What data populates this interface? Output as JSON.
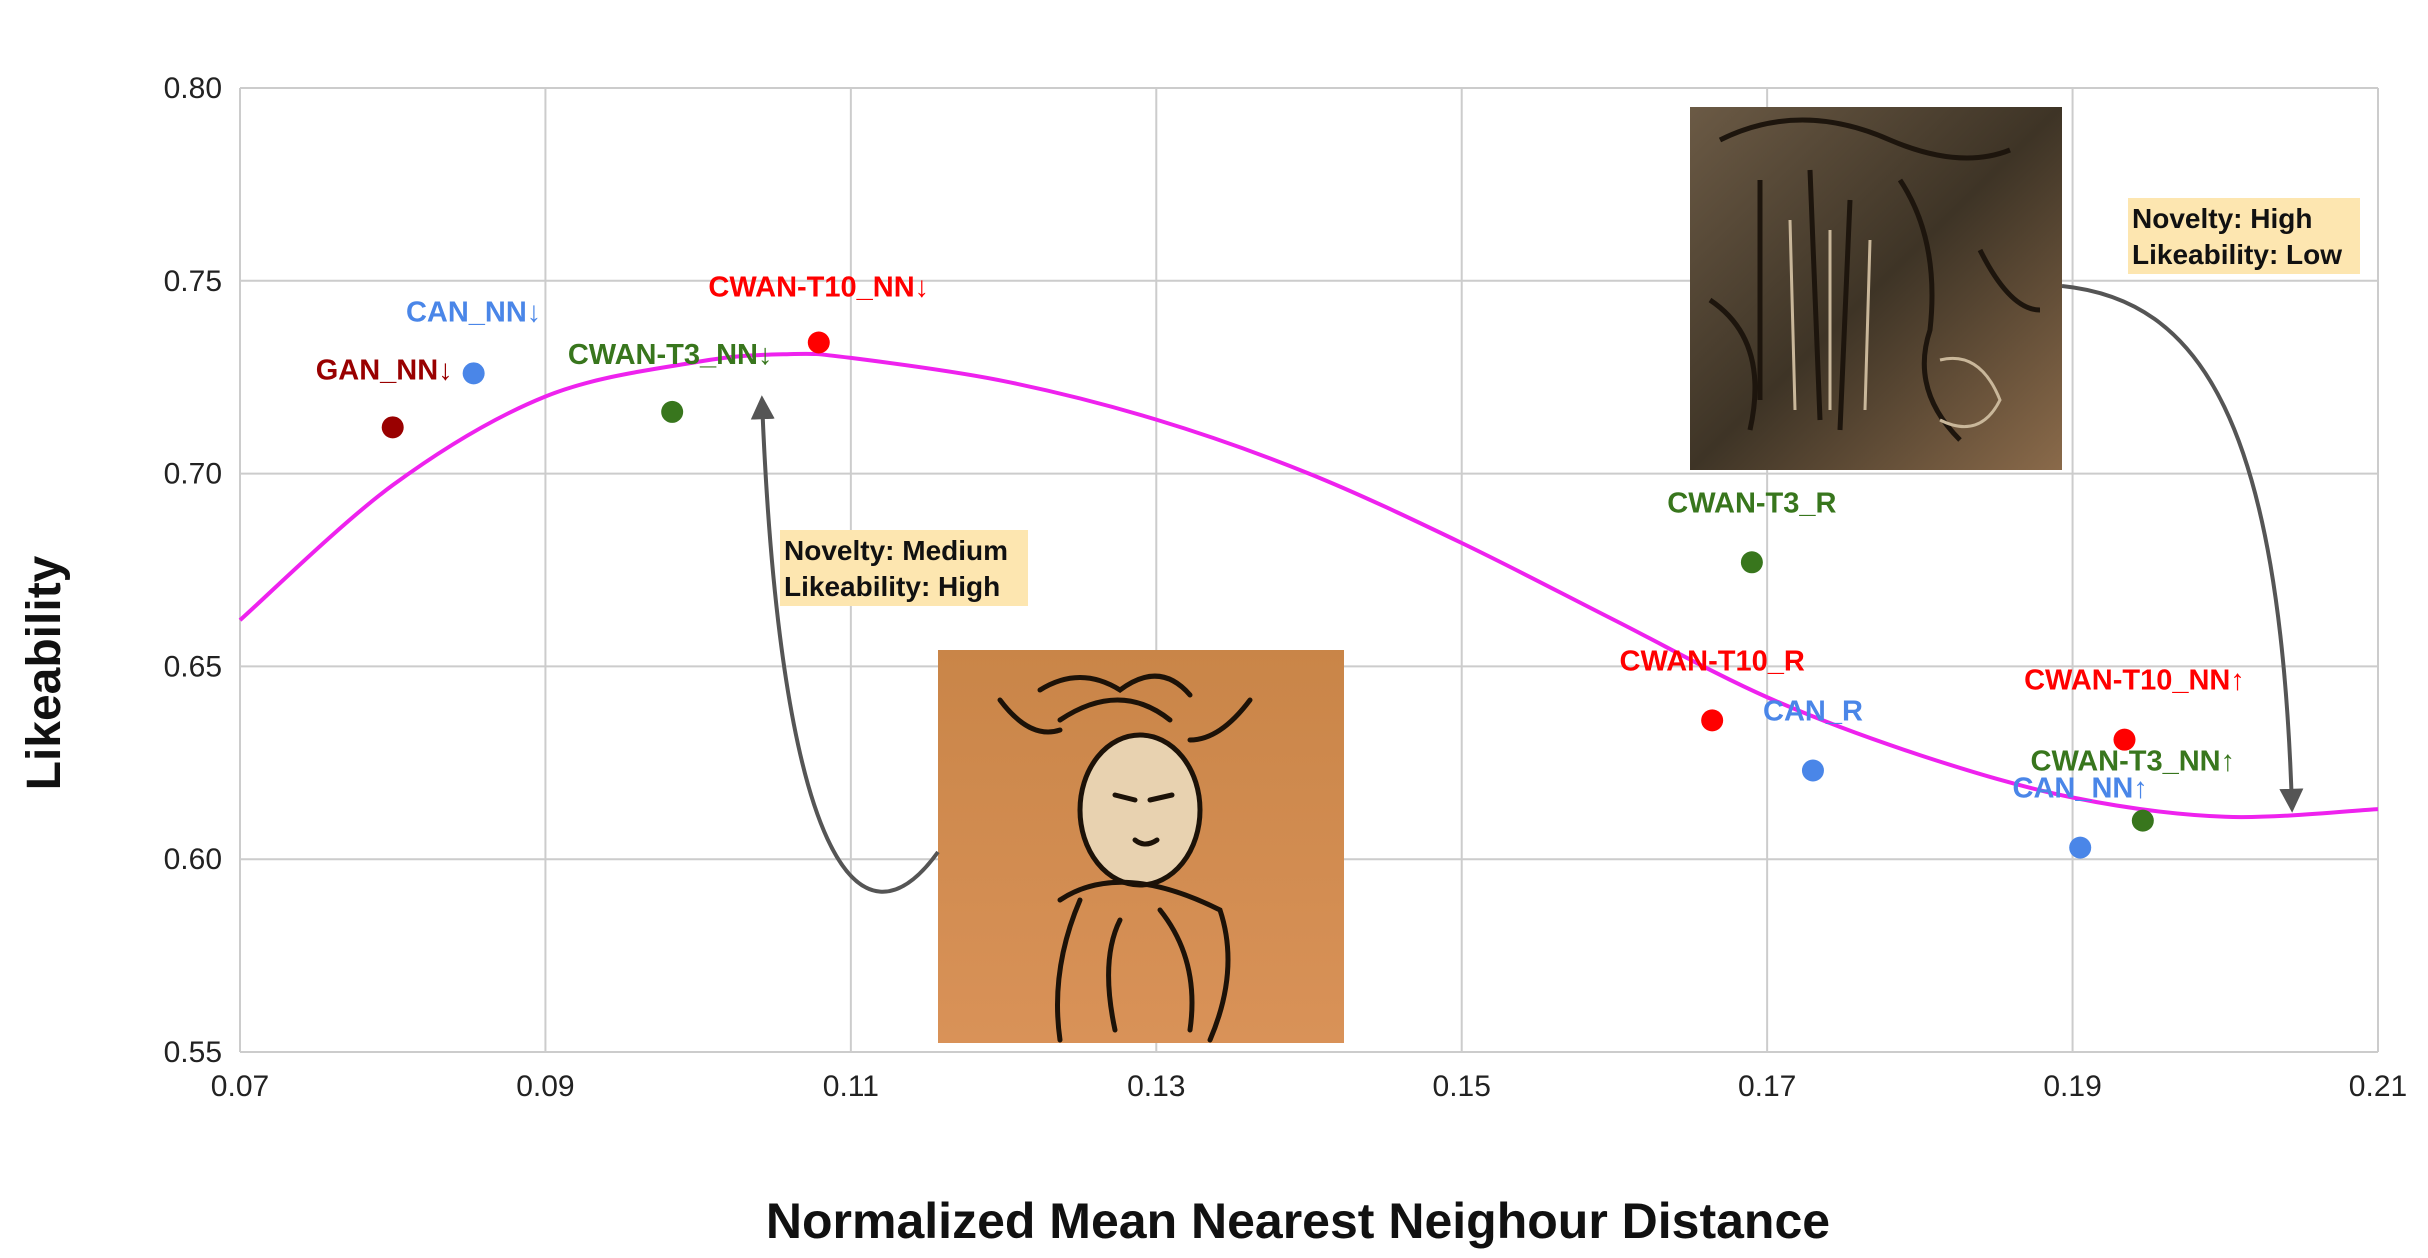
{
  "chart_data": {
    "type": "scatter",
    "xlabel": "Normalized Mean Nearest Neighour Distance",
    "ylabel": "Likeability",
    "xlim": [
      0.07,
      0.21
    ],
    "ylim": [
      0.55,
      0.8
    ],
    "x_ticks": [
      "0.07",
      "0.09",
      "0.11",
      "0.13",
      "0.15",
      "0.17",
      "0.19",
      "0.21"
    ],
    "y_ticks": [
      "0.55",
      "0.60",
      "0.65",
      "0.70",
      "0.75",
      "0.80"
    ],
    "grid": true,
    "points": [
      {
        "label": "GAN_NN↓",
        "x": 0.08,
        "y": 0.712,
        "color": "#990000"
      },
      {
        "label": "CAN_NN↓",
        "x": 0.0853,
        "y": 0.726,
        "color": "#4a86e8"
      },
      {
        "label": "CWAN-T3_NN↓",
        "x": 0.0983,
        "y": 0.716,
        "color": "#38761d"
      },
      {
        "label": "CWAN-T10_NN↓",
        "x": 0.1079,
        "y": 0.734,
        "color": "#ff0000"
      },
      {
        "label": "CWAN-T3_R",
        "x": 0.169,
        "y": 0.677,
        "color": "#38761d"
      },
      {
        "label": "CWAN-T10_R",
        "x": 0.1664,
        "y": 0.636,
        "color": "#ff0000"
      },
      {
        "label": "CAN_R",
        "x": 0.173,
        "y": 0.623,
        "color": "#4a86e8"
      },
      {
        "label": "CWAN-T10_NN↑",
        "x": 0.1934,
        "y": 0.631,
        "color": "#ff0000"
      },
      {
        "label": "CWAN-T3_NN↑",
        "x": 0.1946,
        "y": 0.61,
        "color": "#38761d"
      },
      {
        "label": "CAN_NN↑",
        "x": 0.1905,
        "y": 0.603,
        "color": "#4a86e8"
      }
    ],
    "trend_curve": {
      "color": "#ee22ee",
      "x": [
        0.07,
        0.08,
        0.09,
        0.1,
        0.106,
        0.11,
        0.12,
        0.13,
        0.14,
        0.15,
        0.16,
        0.17,
        0.18,
        0.19,
        0.2,
        0.21
      ],
      "y": [
        0.662,
        0.697,
        0.72,
        0.729,
        0.731,
        0.73,
        0.724,
        0.714,
        0.7,
        0.682,
        0.662,
        0.642,
        0.627,
        0.616,
        0.611,
        0.613
      ]
    },
    "annotations": [
      {
        "line1": "Novelty: Medium",
        "line2": "Likeability: High"
      },
      {
        "line1": "Novelty: High",
        "line2": "Likeability: Low"
      }
    ]
  },
  "colors": {
    "grid": "#cccccc",
    "note_highlight": "#fde6b0",
    "arrow": "#555555"
  },
  "images": [
    {
      "icon": "painting-portrait-thumbnail"
    },
    {
      "icon": "painting-abstract-thumbnail"
    }
  ]
}
